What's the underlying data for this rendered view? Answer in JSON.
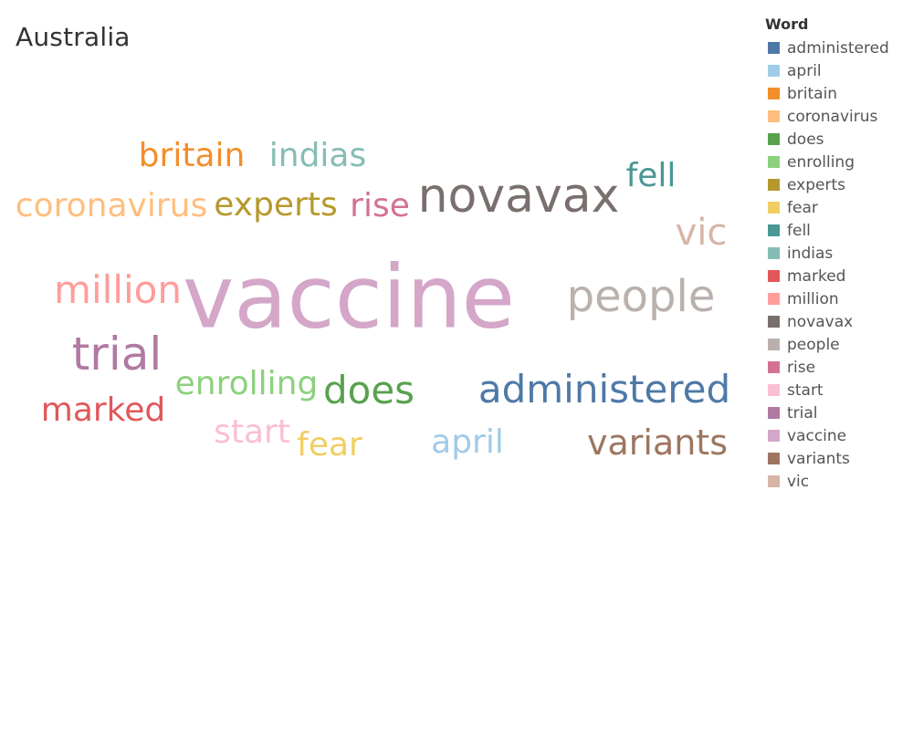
{
  "title": "Australia",
  "chart_data": {
    "type": "wordcloud",
    "title": "Australia",
    "legend_title": "Word",
    "legend_position": "right",
    "words": [
      {
        "text": "administered",
        "color": "#4e79a7"
      },
      {
        "text": "april",
        "color": "#a0cbe8"
      },
      {
        "text": "britain",
        "color": "#f28e2b"
      },
      {
        "text": "coronavirus",
        "color": "#ffbe7d"
      },
      {
        "text": "does",
        "color": "#59a14f"
      },
      {
        "text": "enrolling",
        "color": "#8cd17d"
      },
      {
        "text": "experts",
        "color": "#b6992d"
      },
      {
        "text": "fear",
        "color": "#f1ce63"
      },
      {
        "text": "fell",
        "color": "#499894"
      },
      {
        "text": "indias",
        "color": "#86bcb6"
      },
      {
        "text": "marked",
        "color": "#e15759"
      },
      {
        "text": "million",
        "color": "#ff9d9a"
      },
      {
        "text": "novavax",
        "color": "#79706e"
      },
      {
        "text": "people",
        "color": "#bab0ac"
      },
      {
        "text": "rise",
        "color": "#d37295"
      },
      {
        "text": "start",
        "color": "#fabfd2"
      },
      {
        "text": "trial",
        "color": "#b07aa1"
      },
      {
        "text": "vaccine",
        "color": "#d4a6c8"
      },
      {
        "text": "variants",
        "color": "#9d7660"
      },
      {
        "text": "vic",
        "color": "#d7b5a6"
      }
    ]
  }
}
